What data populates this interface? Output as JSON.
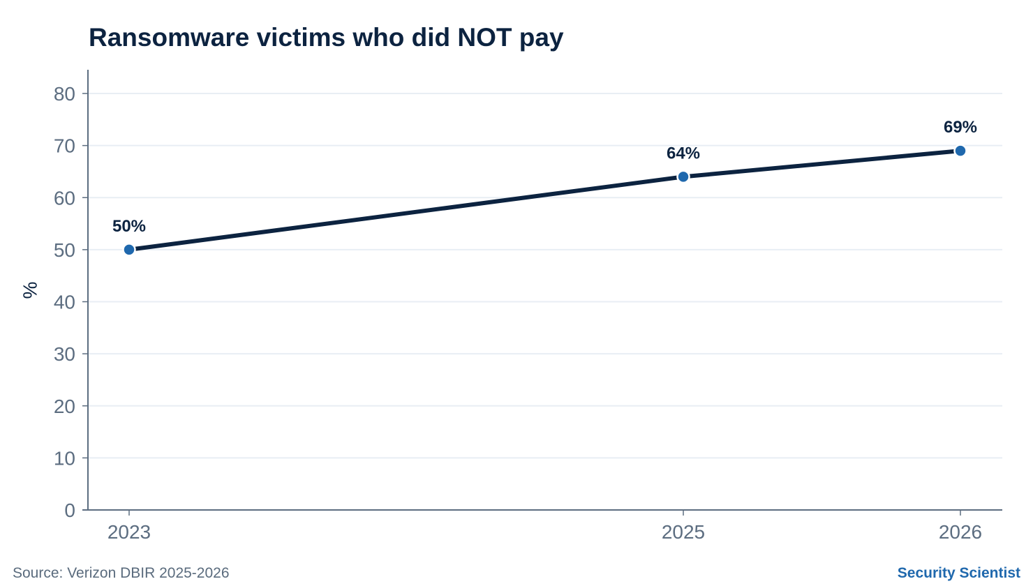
{
  "page": {
    "title": "Ransomware victims who did NOT pay",
    "source": "Source: Verizon DBIR 2025-2026",
    "brand": "Security Scientist"
  },
  "chart_data": {
    "type": "line",
    "title": "Ransomware victims who did NOT pay",
    "xlabel": "",
    "ylabel": "%",
    "x": [
      2023,
      2025,
      2026
    ],
    "series": [
      {
        "values": [
          50,
          64,
          69
        ],
        "labels": [
          "50%",
          "64%",
          "69%"
        ]
      }
    ],
    "ylim": [
      0,
      80
    ],
    "yticks": [
      0,
      10,
      20,
      30,
      40,
      50,
      60,
      70,
      80
    ],
    "xticks": [
      2023,
      2025,
      2026
    ],
    "grid": "horizontal",
    "legend": "none",
    "colors": {
      "line": "#0c2340",
      "marker": "#1f68ad",
      "grid": "#e8eef4",
      "axis": "#5c6d80",
      "title": "#0c2340",
      "brand": "#1f68ad"
    }
  }
}
